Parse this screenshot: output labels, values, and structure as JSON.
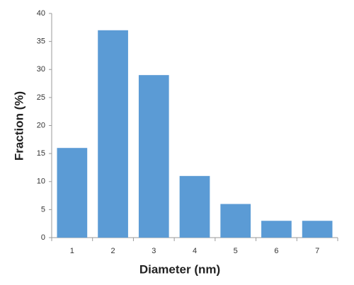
{
  "chart_data": {
    "type": "bar",
    "x_label": "Diameter (nm)",
    "y_label": "Fraction (%)",
    "categories": [
      "1",
      "2",
      "3",
      "4",
      "5",
      "6",
      "7"
    ],
    "values": [
      16,
      37,
      29,
      11,
      6,
      3,
      3
    ],
    "color": "#5b9bd5",
    "ylim": [
      0,
      40
    ],
    "yticks": [
      0,
      5,
      10,
      15,
      20,
      25,
      30,
      35,
      40
    ],
    "grid": false
  }
}
